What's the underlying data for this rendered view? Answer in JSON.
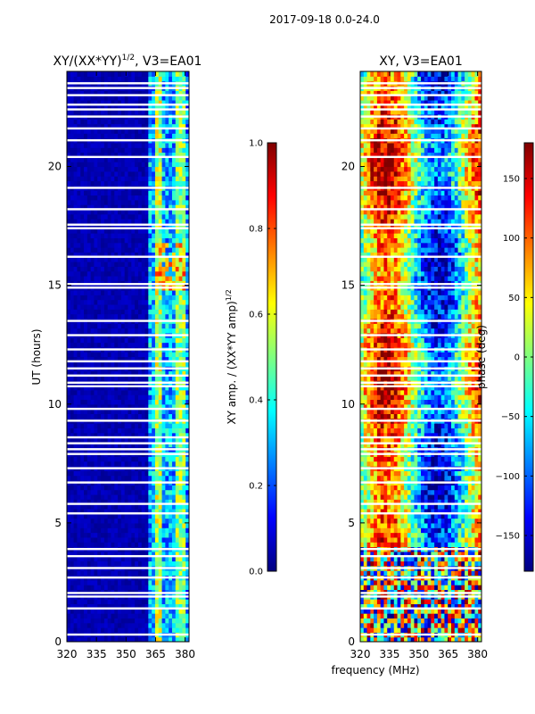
{
  "figure": {
    "suptitle": "2017-09-18 0.0-24.0",
    "xlabel": "frequency (MHz)"
  },
  "colors": {
    "jet": [
      "#00007f",
      "#0000ff",
      "#007fff",
      "#00ffff",
      "#7fff7f",
      "#ffff00",
      "#ff7f00",
      "#ff0000",
      "#7f0000"
    ],
    "frame": "#000000",
    "gap": "#ffffff"
  },
  "chart_data": [
    {
      "type": "heatmap",
      "title_base": "XY/(XX*YY)",
      "title_sup": "1/2",
      "title_suffix": ", V3=EA01",
      "xlabel": "",
      "ylabel": "UT (hours)",
      "xlim": [
        320,
        382
      ],
      "ylim": [
        0,
        24
      ],
      "xticks": [
        320,
        335,
        350,
        365,
        380
      ],
      "yticks": [
        0,
        5,
        10,
        15,
        20
      ],
      "colorbar": {
        "label_base": "XY amp. / (XX*YY amp)",
        "label_sup": "1/2",
        "range": [
          0,
          1
        ],
        "ticks": [
          "0.0",
          "0.2",
          "0.4",
          "0.6",
          "0.8",
          "1.0"
        ],
        "tick_values": [
          0.0,
          0.2,
          0.4,
          0.6,
          0.8,
          1.0
        ]
      },
      "bands": [
        {
          "from_mhz": 320,
          "to_mhz": 361,
          "typical": 0.05
        },
        {
          "from_mhz": 361,
          "to_mhz": 365,
          "typical": 0.3
        },
        {
          "from_mhz": 365,
          "to_mhz": 369,
          "typical": 0.55
        },
        {
          "from_mhz": 369,
          "to_mhz": 375,
          "typical": 0.3
        },
        {
          "from_mhz": 375,
          "to_mhz": 380,
          "typical": 0.5
        },
        {
          "from_mhz": 380,
          "to_mhz": 382,
          "typical": 0.25
        }
      ],
      "enhanced_intervals": [
        {
          "from_ut": 14.8,
          "to_ut": 16.9,
          "from_mhz": 365,
          "to_mhz": 381,
          "peak": 0.85
        }
      ],
      "flagged_ut": [
        0.3,
        1.4,
        1.9,
        2.05,
        2.7,
        3.1,
        3.6,
        3.9,
        5.4,
        5.8,
        6.7,
        7.3,
        7.9,
        8.1,
        8.35,
        8.6,
        9.3,
        9.8,
        10.75,
        10.9,
        11.2,
        11.5,
        11.8,
        12.3,
        12.9,
        13.5,
        14.9,
        15.05,
        16.2,
        17.4,
        17.55,
        18.2,
        19.1,
        20.4,
        21.1,
        21.6,
        22.1,
        22.4,
        22.6,
        23.0,
        23.3,
        23.5
      ]
    },
    {
      "type": "heatmap",
      "title": "XY, V3=EA01",
      "xlabel": "",
      "ylabel": "",
      "xlim": [
        320,
        382
      ],
      "ylim": [
        0,
        24
      ],
      "xticks": [
        320,
        335,
        350,
        365,
        380
      ],
      "yticks": [
        0,
        5,
        10,
        15,
        20
      ],
      "colorbar": {
        "label": "phase (deg)",
        "range": [
          -180,
          180
        ],
        "ticks": [
          "−150",
          "−100",
          "−50",
          "0",
          "50",
          "100",
          "150"
        ],
        "tick_values": [
          -150,
          -100,
          -50,
          0,
          50,
          100,
          150
        ]
      },
      "features": [
        {
          "description": "phase wrapping noise",
          "from_ut": 0,
          "to_ut": 4,
          "range_deg": [
            -180,
            180
          ]
        },
        {
          "description": "steady phase bands",
          "from_ut": 4,
          "to_ut": 24,
          "center_mhz": [
            340,
            352,
            365,
            376
          ]
        }
      ],
      "flagged_ut": [
        0.3,
        1.4,
        1.9,
        2.05,
        2.7,
        3.1,
        3.6,
        3.9,
        5.4,
        5.8,
        6.7,
        7.3,
        7.9,
        8.1,
        8.35,
        8.6,
        9.3,
        9.8,
        10.75,
        10.9,
        11.2,
        11.5,
        11.8,
        12.3,
        12.9,
        13.5,
        14.9,
        15.05,
        16.2,
        17.4,
        17.55,
        18.2,
        19.1,
        20.4,
        21.1,
        21.6,
        22.1,
        22.4,
        22.6,
        23.0,
        23.3,
        23.5
      ]
    }
  ]
}
